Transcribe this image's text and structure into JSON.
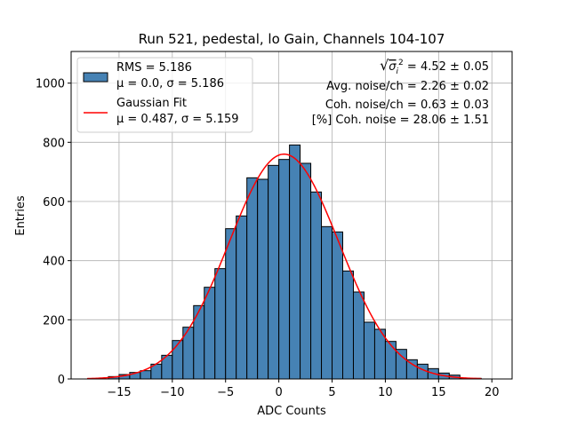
{
  "chart_data": {
    "type": "bar",
    "title": "Run 521, pedestal, lo Gain, Channels 104-107",
    "xlabel": "ADC Counts",
    "ylabel": "Entries",
    "xlim": [
      -19.5,
      21.9
    ],
    "ylim": [
      0,
      1107
    ],
    "grid": true,
    "x_ticks": [
      -15,
      -10,
      -5,
      0,
      5,
      10,
      15,
      20
    ],
    "y_ticks": [
      0,
      200,
      400,
      600,
      800,
      1000
    ],
    "bin_width": 1,
    "bins": [
      {
        "x0": -16,
        "x1": -15,
        "value": 8
      },
      {
        "x0": -15,
        "x1": -14,
        "value": 15
      },
      {
        "x0": -14,
        "x1": -13,
        "value": 22
      },
      {
        "x0": -13,
        "x1": -12,
        "value": 28
      },
      {
        "x0": -12,
        "x1": -11,
        "value": 50
      },
      {
        "x0": -11,
        "x1": -10,
        "value": 80
      },
      {
        "x0": -10,
        "x1": -9,
        "value": 130
      },
      {
        "x0": -9,
        "x1": -8,
        "value": 175
      },
      {
        "x0": -8,
        "x1": -7,
        "value": 248
      },
      {
        "x0": -7,
        "x1": -6,
        "value": 310
      },
      {
        "x0": -6,
        "x1": -5,
        "value": 373
      },
      {
        "x0": -5,
        "x1": -4,
        "value": 508
      },
      {
        "x0": -4,
        "x1": -3,
        "value": 551
      },
      {
        "x0": -3,
        "x1": -2,
        "value": 680
      },
      {
        "x0": -2,
        "x1": -1,
        "value": 675
      },
      {
        "x0": -1,
        "x1": 0,
        "value": 722
      },
      {
        "x0": 0,
        "x1": 1,
        "value": 742
      },
      {
        "x0": 1,
        "x1": 2,
        "value": 791
      },
      {
        "x0": 2,
        "x1": 3,
        "value": 729
      },
      {
        "x0": 3,
        "x1": 4,
        "value": 632
      },
      {
        "x0": 4,
        "x1": 5,
        "value": 515
      },
      {
        "x0": 5,
        "x1": 6,
        "value": 497
      },
      {
        "x0": 6,
        "x1": 7,
        "value": 365
      },
      {
        "x0": 7,
        "x1": 8,
        "value": 294
      },
      {
        "x0": 8,
        "x1": 9,
        "value": 192
      },
      {
        "x0": 9,
        "x1": 10,
        "value": 168
      },
      {
        "x0": 10,
        "x1": 11,
        "value": 127
      },
      {
        "x0": 11,
        "x1": 12,
        "value": 100
      },
      {
        "x0": 12,
        "x1": 13,
        "value": 65
      },
      {
        "x0": 13,
        "x1": 14,
        "value": 50
      },
      {
        "x0": 14,
        "x1": 15,
        "value": 35
      },
      {
        "x0": 15,
        "x1": 16,
        "value": 20
      },
      {
        "x0": 16,
        "x1": 17,
        "value": 13
      },
      {
        "x0": 17,
        "x1": 18,
        "value": 3
      },
      {
        "x0": 18,
        "x1": 19,
        "value": 2
      }
    ],
    "histogram_color": "#4682b4",
    "fit": {
      "type": "gaussian",
      "mu": 0.487,
      "sigma": 5.159,
      "peak": 760,
      "x_range": [
        -18,
        19
      ],
      "color": "#ff0000"
    },
    "legend": {
      "position": "upper-left",
      "entries": [
        {
          "line1": "RMS = 5.186",
          "line2": "μ = 0.0, σ = 5.186"
        },
        {
          "line1": "Gaussian Fit",
          "line2": "μ = 0.487, σ = 5.159"
        }
      ]
    },
    "stats": {
      "position": "upper-right",
      "lines": [
        {
          "prefix": "√",
          "symbol": "σ",
          "sub": "i",
          "sup": "2",
          "text": " = 4.52 ± 0.05"
        },
        {
          "text": "Avg. noise/ch = 2.26 ± 0.02"
        },
        {
          "text": "Coh. noise/ch = 0.63 ± 0.03"
        },
        {
          "text": "[%] Coh. noise = 28.06 ± 1.51"
        }
      ]
    }
  }
}
